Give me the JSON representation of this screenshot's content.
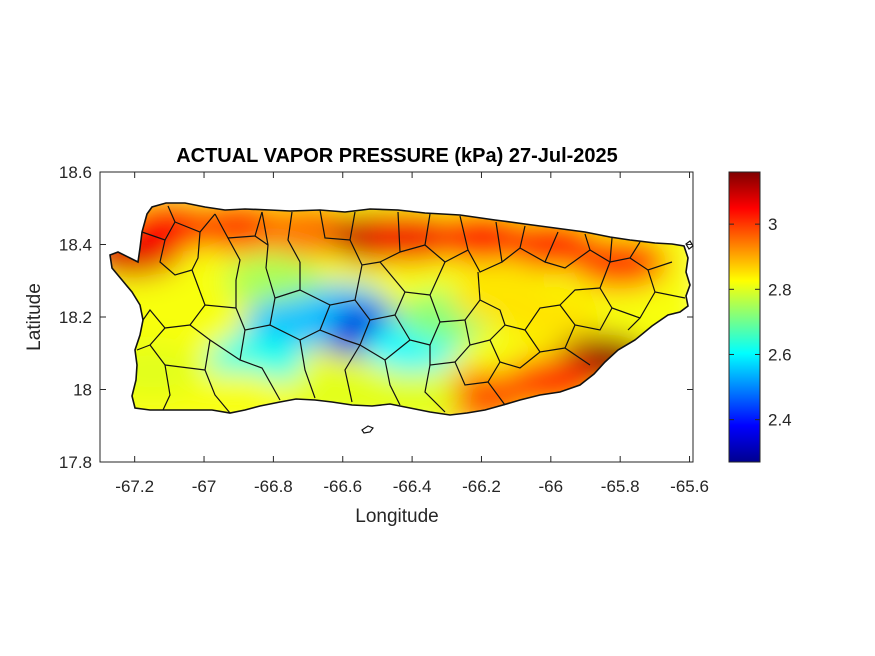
{
  "chart_data": {
    "type": "heatmap",
    "title": "ACTUAL VAPOR PRESSURE (kPa) 27-Jul-2025",
    "xlabel": "Longitude",
    "ylabel": "Latitude",
    "xlim": [
      -67.3,
      -65.59
    ],
    "ylim": [
      17.8,
      18.6
    ],
    "xticks": [
      -67.2,
      -67,
      -66.8,
      -66.6,
      -66.4,
      -66.2,
      -66,
      -65.8,
      -65.6
    ],
    "yticks": [
      17.8,
      18,
      18.2,
      18.4,
      18.6
    ],
    "xtick_labels": [
      "-67.2",
      "-67",
      "-66.8",
      "-66.6",
      "-66.4",
      "-66.2",
      "-66",
      "-65.8",
      "-65.6"
    ],
    "ytick_labels": [
      "17.8",
      "18",
      "18.2",
      "18.4",
      "18.6"
    ],
    "colorbar": {
      "colormap": "jet",
      "range": [
        2.27,
        3.16
      ],
      "ticks": [
        2.4,
        2.6,
        2.8,
        3.0
      ],
      "tick_labels": [
        "2.4",
        "2.6",
        "2.8",
        "3"
      ]
    },
    "grid": false,
    "region_values": [
      {
        "lon": -67.2,
        "lat": 18.38,
        "value": 3.08
      },
      {
        "lon": -67.1,
        "lat": 18.45,
        "value": 3.05
      },
      {
        "lon": -66.9,
        "lat": 18.45,
        "value": 3.0
      },
      {
        "lon": -66.7,
        "lat": 18.44,
        "value": 2.95
      },
      {
        "lon": -66.5,
        "lat": 18.42,
        "value": 3.1
      },
      {
        "lon": -66.4,
        "lat": 18.42,
        "value": 3.06
      },
      {
        "lon": -66.2,
        "lat": 18.42,
        "value": 3.05
      },
      {
        "lon": -66.0,
        "lat": 18.4,
        "value": 3.02
      },
      {
        "lon": -65.8,
        "lat": 18.35,
        "value": 3.0
      },
      {
        "lon": -67.1,
        "lat": 18.25,
        "value": 2.82
      },
      {
        "lon": -66.8,
        "lat": 18.3,
        "value": 2.75
      },
      {
        "lon": -66.6,
        "lat": 18.22,
        "value": 2.55
      },
      {
        "lon": -66.55,
        "lat": 18.16,
        "value": 2.35
      },
      {
        "lon": -66.75,
        "lat": 18.18,
        "value": 2.55
      },
      {
        "lon": -66.85,
        "lat": 18.08,
        "value": 2.62
      },
      {
        "lon": -66.4,
        "lat": 18.12,
        "value": 2.6
      },
      {
        "lon": -66.3,
        "lat": 18.2,
        "value": 2.72
      },
      {
        "lon": -66.15,
        "lat": 18.25,
        "value": 2.85
      },
      {
        "lon": -66.0,
        "lat": 18.2,
        "value": 2.85
      },
      {
        "lon": -65.85,
        "lat": 18.08,
        "value": 3.14
      },
      {
        "lon": -66.0,
        "lat": 18.02,
        "value": 3.0
      },
      {
        "lon": -66.2,
        "lat": 17.98,
        "value": 2.98
      },
      {
        "lon": -66.4,
        "lat": 17.98,
        "value": 2.8
      },
      {
        "lon": -66.6,
        "lat": 17.99,
        "value": 2.8
      },
      {
        "lon": -66.9,
        "lat": 17.98,
        "value": 2.82
      },
      {
        "lon": -67.15,
        "lat": 18.05,
        "value": 2.8
      }
    ]
  }
}
